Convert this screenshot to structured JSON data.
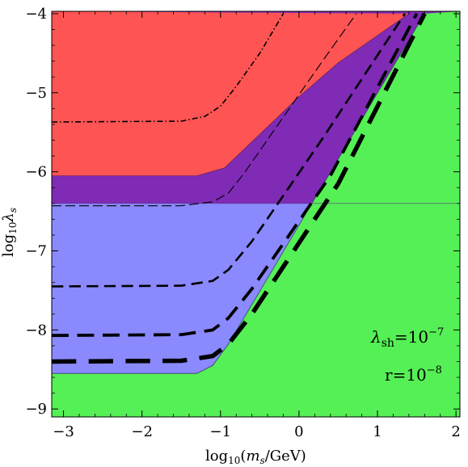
{
  "chart_data": {
    "type": "area",
    "title": "",
    "xlabel_parts": {
      "pre": "log",
      "sub": "10",
      "open": "(",
      "var": "m",
      "var_sub": "s",
      "post": "/GeV)"
    },
    "ylabel_parts": {
      "pre": "log",
      "sub": "10",
      "var": "λ",
      "var_sub": "s"
    },
    "xlim": [
      -3.15,
      2.05
    ],
    "ylim": [
      -9.1,
      -3.97
    ],
    "x_ticks": [
      -3,
      -2,
      -1,
      0,
      1,
      2
    ],
    "y_ticks": [
      -9,
      -8,
      -7,
      -6,
      -5,
      -4
    ],
    "x_tick_labels": [
      "−3",
      "−2",
      "−1",
      "0",
      "1",
      "2"
    ],
    "y_tick_labels": [
      "−9",
      "−8",
      "−7",
      "−6",
      "−5",
      "−4"
    ],
    "colors": {
      "green": "#55f055",
      "red": "#ff5454",
      "purple": "#7f2bb5",
      "blue": "#8a89fe",
      "line": "#000000"
    },
    "regions": [
      {
        "name": "green",
        "boundary": [
          [
            -3.15,
            -8.55
          ],
          [
            -1.3,
            -8.55
          ],
          [
            -1.1,
            -8.45
          ],
          [
            -0.9,
            -8.18
          ],
          [
            1.6,
            -4.0
          ]
        ]
      },
      {
        "name": "blue",
        "upper": -6.4
      },
      {
        "name": "red",
        "boundary": [
          [
            -3.15,
            -6.05
          ],
          [
            -1.3,
            -6.05
          ],
          [
            -0.95,
            -5.95
          ],
          [
            -0.6,
            -5.62
          ],
          [
            0.0,
            -5.05
          ],
          [
            0.5,
            -4.62
          ],
          [
            1.4,
            -4.0
          ]
        ]
      },
      {
        "name": "purple"
      }
    ],
    "series": [
      {
        "style": "dashdot-thin",
        "width": 1.6,
        "points": [
          [
            -3.15,
            -5.37
          ],
          [
            -1.5,
            -5.36
          ],
          [
            -1.2,
            -5.3
          ],
          [
            -1.0,
            -5.17
          ],
          [
            -0.8,
            -4.92
          ],
          [
            -0.5,
            -4.5
          ],
          [
            -0.2,
            -4.0
          ]
        ]
      },
      {
        "style": "dashed-thin",
        "width": 1.1,
        "points": [
          [
            -3.15,
            -6.43
          ],
          [
            -1.5,
            -6.43
          ],
          [
            -1.1,
            -6.38
          ],
          [
            -0.9,
            -6.27
          ],
          [
            -0.7,
            -6.02
          ],
          [
            -0.3,
            -5.45
          ],
          [
            0.3,
            -4.6
          ],
          [
            0.73,
            -4.0
          ]
        ]
      },
      {
        "style": "dashed",
        "width": 2.6,
        "points": [
          [
            -3.15,
            -7.45
          ],
          [
            -1.5,
            -7.44
          ],
          [
            -1.1,
            -7.38
          ],
          [
            -0.9,
            -7.24
          ],
          [
            -0.6,
            -6.88
          ],
          [
            0.3,
            -5.58
          ],
          [
            1.35,
            -4.0
          ]
        ]
      },
      {
        "style": "dashed",
        "width": 3.8,
        "points": [
          [
            -3.15,
            -8.07
          ],
          [
            -1.5,
            -8.06
          ],
          [
            -1.1,
            -8.0
          ],
          [
            -0.9,
            -7.85
          ],
          [
            -0.6,
            -7.48
          ],
          [
            0.4,
            -6.05
          ],
          [
            1.5,
            -4.0
          ]
        ]
      },
      {
        "style": "dashed",
        "width": 5.5,
        "points": [
          [
            -3.15,
            -8.4
          ],
          [
            -1.5,
            -8.39
          ],
          [
            -1.1,
            -8.33
          ],
          [
            -0.9,
            -8.18
          ],
          [
            -0.6,
            -7.8
          ],
          [
            0.5,
            -6.15
          ],
          [
            1.6,
            -4.0
          ]
        ]
      }
    ],
    "annotations": [
      {
        "sym": "λ",
        "sub": "sh",
        "eq": "=10",
        "sup": "−7"
      },
      {
        "sym": "r",
        "sub": "",
        "eq": "=10",
        "sup": "−8"
      }
    ]
  }
}
